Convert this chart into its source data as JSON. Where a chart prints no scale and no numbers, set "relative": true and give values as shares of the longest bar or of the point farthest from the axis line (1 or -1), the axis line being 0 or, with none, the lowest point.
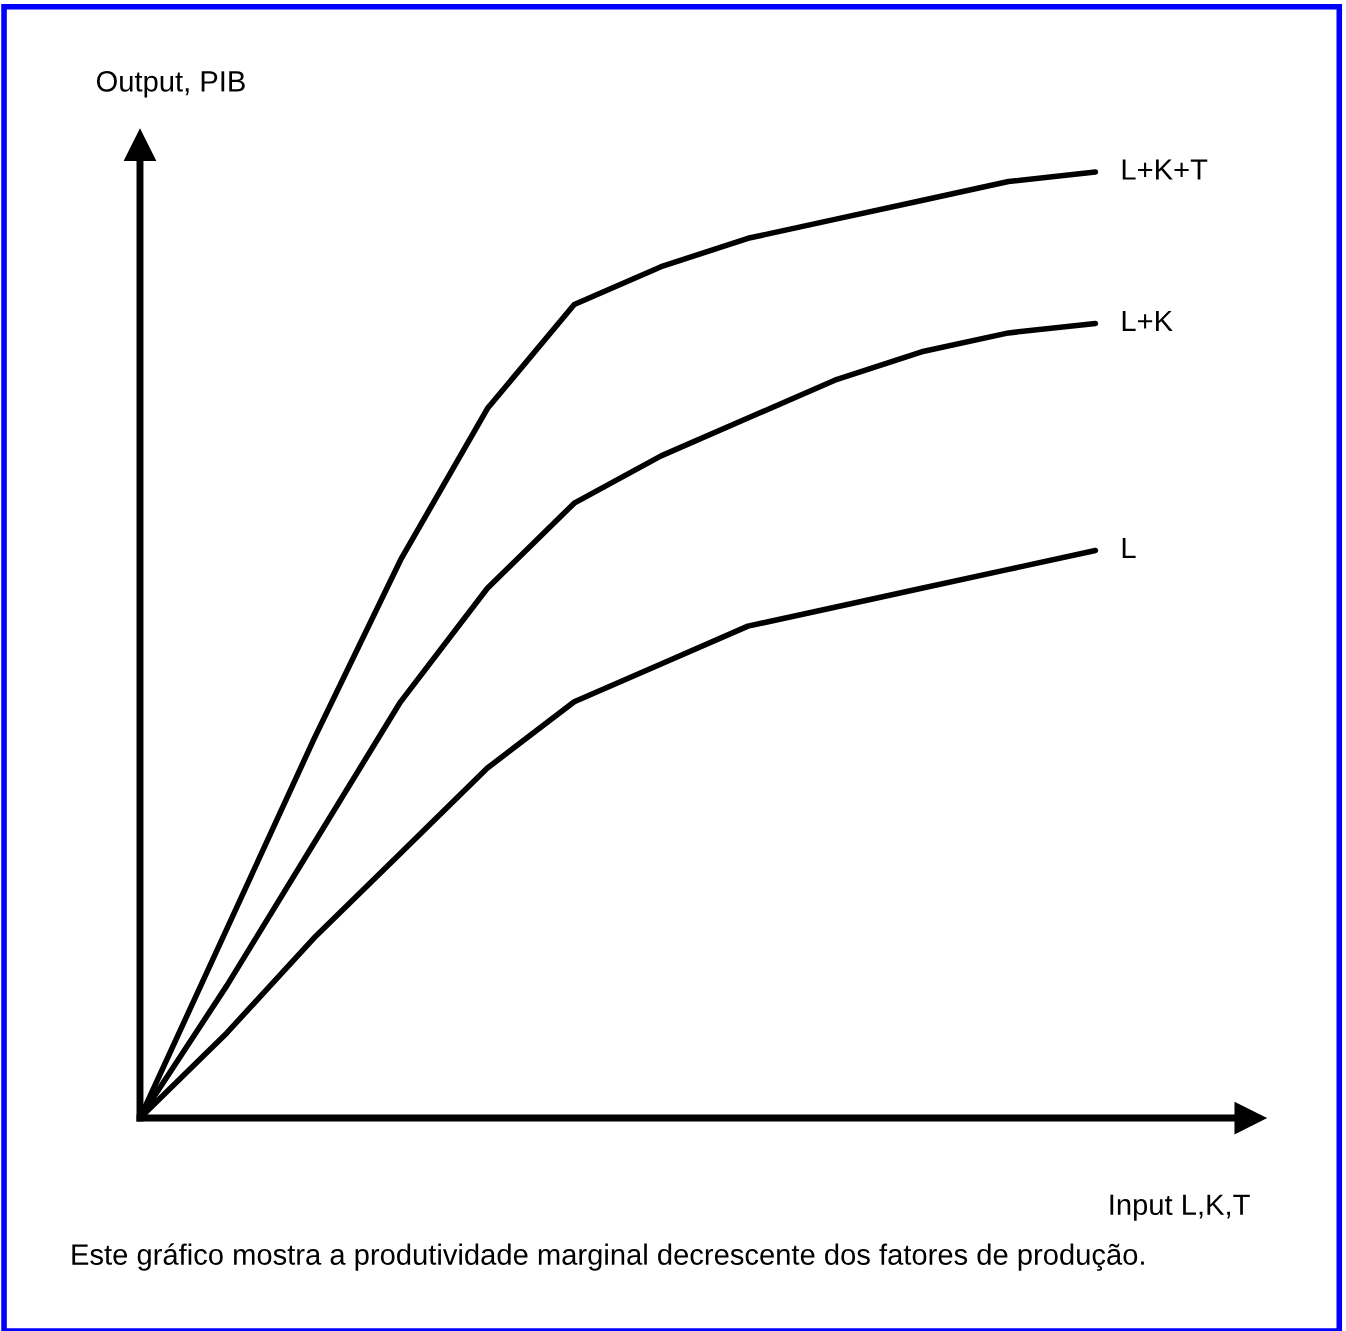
{
  "chart_data": {
    "type": "line",
    "relative": true,
    "xlabel": "Input L,K,T",
    "ylabel": "Output, PIB",
    "categories": [
      null,
      null,
      null,
      null,
      null,
      null,
      null,
      null,
      null,
      null,
      null,
      null
    ],
    "series": [
      {
        "name": "L+K+T",
        "color": "#000000",
        "values": [
          0,
          0.2,
          0.4,
          0.59,
          0.75,
          0.86,
          0.9,
          0.93,
          0.95,
          0.97,
          0.99,
          1.0
        ]
      },
      {
        "name": "L+K",
        "color": "#000000",
        "values": [
          0,
          0.14,
          0.29,
          0.44,
          0.56,
          0.65,
          0.7,
          0.74,
          0.78,
          0.81,
          0.83,
          0.84
        ]
      },
      {
        "name": "L",
        "color": "#000000",
        "values": [
          0,
          0.09,
          0.19,
          0.28,
          0.37,
          0.44,
          0.48,
          0.52,
          0.54,
          0.56,
          0.58,
          0.6
        ]
      }
    ],
    "annotations": [
      "Este gráfico mostra a produtividade marginal decrescente dos fatores de produção."
    ],
    "grid": false,
    "legend": false,
    "marker": "none",
    "line_style": "solid"
  }
}
